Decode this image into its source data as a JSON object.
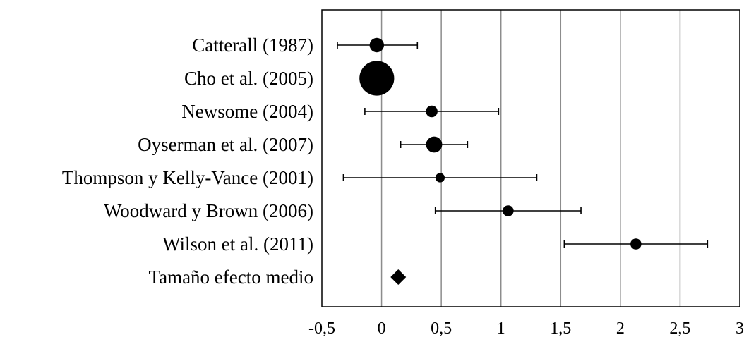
{
  "chart_data": {
    "type": "forest",
    "title": "",
    "xlabel": "",
    "ylabel": "",
    "xlim": [
      -0.5,
      3
    ],
    "x_ticks": [
      "-0,5",
      "0",
      "0,5",
      "1",
      "1,5",
      "2",
      "2,5",
      "3"
    ],
    "x_tick_values": [
      -0.5,
      0,
      0.5,
      1,
      1.5,
      2,
      2.5,
      3
    ],
    "grid": "vertical",
    "studies": [
      {
        "label": "Catterall (1987)",
        "estimate": -0.04,
        "ci": [
          -0.37,
          0.3
        ],
        "weight": 3
      },
      {
        "label": "Cho et al. (2005)",
        "estimate": -0.04,
        "ci": null,
        "weight": 9
      },
      {
        "label": "Newsome (2004)",
        "estimate": 0.42,
        "ci": [
          -0.14,
          0.98
        ],
        "weight": 2.2
      },
      {
        "label": "Oyserman et al. (2007)",
        "estimate": 0.44,
        "ci": [
          0.16,
          0.72
        ],
        "weight": 3.5
      },
      {
        "label": "Thompson y Kelly-Vance (2001)",
        "estimate": 0.49,
        "ci": [
          -0.32,
          1.3
        ],
        "weight": 1.5
      },
      {
        "label": "Woodward y Brown (2006)",
        "estimate": 1.06,
        "ci": [
          0.45,
          1.67
        ],
        "weight": 2
      },
      {
        "label": "Wilson et al. (2011)",
        "estimate": 2.13,
        "ci": [
          1.53,
          2.73
        ],
        "weight": 2
      }
    ],
    "summary": {
      "label": "Tamaño efecto medio",
      "estimate": 0.14
    }
  },
  "colors": {
    "marker": "#000000",
    "grid": "#8c8c8c",
    "frame": "#000000"
  }
}
